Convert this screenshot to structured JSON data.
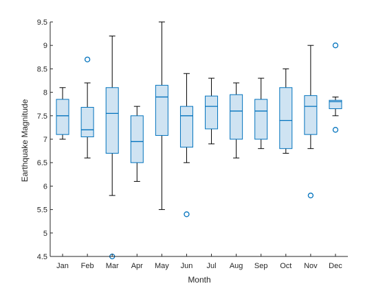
{
  "chart_data": {
    "type": "box",
    "title": "",
    "xlabel": "Month",
    "ylabel": "Earthquake Magnitude",
    "ylim": [
      4.5,
      9.5
    ],
    "yticks": [
      4.5,
      5,
      5.5,
      6,
      6.5,
      7,
      7.5,
      8,
      8.5,
      9,
      9.5
    ],
    "ytick_labels": [
      "4.5",
      "5",
      "5.5",
      "6",
      "6.5",
      "7",
      "7.5",
      "8",
      "8.5",
      "9",
      "9.5"
    ],
    "grid": false,
    "colors": {
      "box_edge": "#0072BD",
      "box_fill": "#CFE3F2",
      "whisker": "#000000",
      "axis": "#262626"
    },
    "categories": [
      "Jan",
      "Feb",
      "Mar",
      "Apr",
      "May",
      "Jun",
      "Jul",
      "Aug",
      "Sep",
      "Oct",
      "Nov",
      "Dec"
    ],
    "boxes": [
      {
        "min": 7.0,
        "q1": 7.1,
        "median": 7.5,
        "q3": 7.85,
        "max": 8.1,
        "outliers": []
      },
      {
        "min": 6.6,
        "q1": 7.05,
        "median": 7.2,
        "q3": 7.68,
        "max": 8.2,
        "outliers": [
          8.7
        ]
      },
      {
        "min": 5.8,
        "q1": 6.7,
        "median": 7.55,
        "q3": 8.1,
        "max": 9.2,
        "outliers": [
          4.5
        ]
      },
      {
        "min": 6.1,
        "q1": 6.5,
        "median": 6.95,
        "q3": 7.5,
        "max": 7.7,
        "outliers": []
      },
      {
        "min": 5.5,
        "q1": 7.08,
        "median": 7.9,
        "q3": 8.15,
        "max": 9.5,
        "outliers": []
      },
      {
        "min": 6.5,
        "q1": 6.83,
        "median": 7.5,
        "q3": 7.7,
        "max": 8.4,
        "outliers": [
          5.4
        ]
      },
      {
        "min": 6.9,
        "q1": 7.22,
        "median": 7.7,
        "q3": 7.92,
        "max": 8.3,
        "outliers": []
      },
      {
        "min": 6.6,
        "q1": 7.0,
        "median": 7.6,
        "q3": 7.95,
        "max": 8.2,
        "outliers": []
      },
      {
        "min": 6.8,
        "q1": 7.0,
        "median": 7.6,
        "q3": 7.85,
        "max": 8.3,
        "outliers": []
      },
      {
        "min": 6.7,
        "q1": 6.8,
        "median": 7.4,
        "q3": 8.1,
        "max": 8.5,
        "outliers": []
      },
      {
        "min": 6.8,
        "q1": 7.1,
        "median": 7.7,
        "q3": 7.93,
        "max": 9.0,
        "outliers": [
          5.8
        ]
      },
      {
        "min": 7.5,
        "q1": 7.65,
        "median": 7.8,
        "q3": 7.83,
        "max": 7.9,
        "outliers": [
          9.0,
          7.2
        ]
      }
    ]
  }
}
